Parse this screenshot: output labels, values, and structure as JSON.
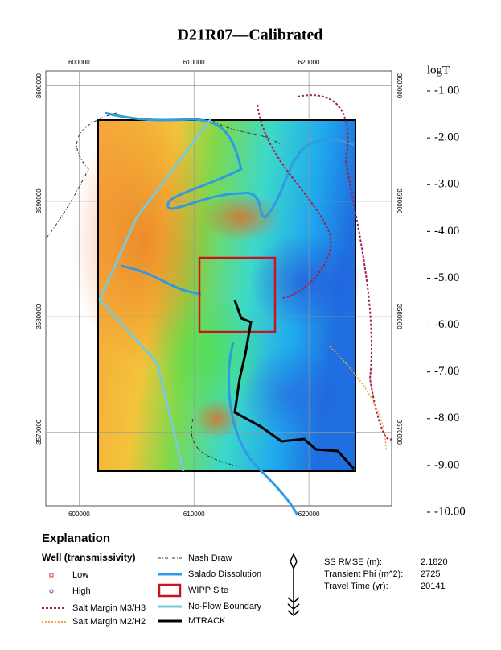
{
  "title": "D21R07—Calibrated",
  "map": {
    "xlim": [
      597100,
      627200
    ],
    "ylim": [
      3563600,
      3601300
    ],
    "xticks": [
      600000,
      610000,
      620000
    ],
    "yticks": [
      3600000,
      3590000,
      3580000,
      3570000
    ]
  },
  "colorbar": {
    "title": "logT",
    "clim": [
      -10,
      -1
    ],
    "ticks": [
      {
        "value": -1,
        "label": "-1.00"
      },
      {
        "value": -2,
        "label": "-2.00"
      },
      {
        "value": -3,
        "label": "-3.00"
      },
      {
        "value": -4,
        "label": "-4.00"
      },
      {
        "value": -5,
        "label": "-5.00"
      },
      {
        "value": -6,
        "label": "-6.00"
      },
      {
        "value": -7,
        "label": "-7.00"
      },
      {
        "value": -8,
        "label": "-8.00"
      },
      {
        "value": -9,
        "label": "-9.00"
      },
      {
        "value": -10,
        "label": "-10.00"
      }
    ]
  },
  "explanation": {
    "title": "Explanation",
    "well_title": "Well (transmissivity)",
    "low": "Low",
    "high": "High",
    "salt_m3": "Salt Margin M3/H3",
    "salt_m2": "Salt Margin M2/H2",
    "nash": "Nash Draw",
    "salado": "Salado Dissolution",
    "wipp": "WIPP Site",
    "noflow": "No-Flow Boundary",
    "mtrack": "MTRACK"
  },
  "stats": [
    {
      "label": "SS RMSE (m):",
      "value": {
        "value": 2.182,
        "label": "2.1820"
      }
    },
    {
      "label": "Transient Phi (m^2):",
      "value": 2725
    },
    {
      "label": "Travel Time (yr):",
      "value": 20141
    }
  ]
}
